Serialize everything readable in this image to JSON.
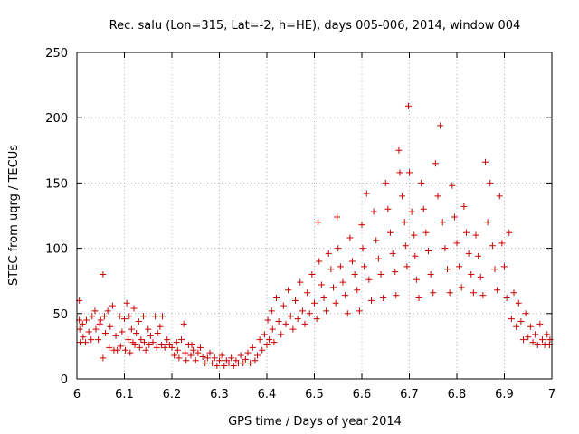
{
  "chart_data": {
    "type": "scatter",
    "title": "Rec. salu (Lon=315, Lat=-2, h=HE), days 005-006, 2014, window 004",
    "xlabel": "GPS time / Days of year 2014",
    "ylabel": "STEC from uqrg / TECUs",
    "xlim": [
      6,
      7
    ],
    "ylim": [
      0,
      250
    ],
    "x_ticks": [
      6,
      6.1,
      6.2,
      6.3,
      6.4,
      6.5,
      6.6,
      6.7,
      6.8,
      6.9,
      7
    ],
    "x_tick_labels": [
      "6",
      "6.1",
      "6.2",
      "6.3",
      "6.4",
      "6.5",
      "6.6",
      "6.7",
      "6.8",
      "6.9",
      "7"
    ],
    "y_ticks": [
      0,
      50,
      100,
      150,
      200,
      250
    ],
    "y_tick_labels": [
      "0",
      "50",
      "100",
      "150",
      "200",
      "250"
    ],
    "grid": true,
    "marker": "+",
    "color": "#cc0000",
    "series": [
      {
        "name": "STEC",
        "points": [
          [
            6.005,
            60
          ],
          [
            6.005,
            45
          ],
          [
            6.006,
            38
          ],
          [
            6.007,
            28
          ],
          [
            6.012,
            42
          ],
          [
            6.013,
            32
          ],
          [
            6.018,
            28
          ],
          [
            6.02,
            45
          ],
          [
            6.025,
            36
          ],
          [
            6.03,
            30
          ],
          [
            6.032,
            48
          ],
          [
            6.038,
            52
          ],
          [
            6.04,
            38
          ],
          [
            6.045,
            30
          ],
          [
            6.048,
            42
          ],
          [
            6.05,
            45
          ],
          [
            6.055,
            80
          ],
          [
            6.055,
            16
          ],
          [
            6.058,
            48
          ],
          [
            6.06,
            35
          ],
          [
            6.065,
            52
          ],
          [
            6.068,
            24
          ],
          [
            6.07,
            40
          ],
          [
            6.075,
            56
          ],
          [
            6.078,
            22
          ],
          [
            6.082,
            33
          ],
          [
            6.085,
            22
          ],
          [
            6.09,
            48
          ],
          [
            6.092,
            25
          ],
          [
            6.095,
            36
          ],
          [
            6.1,
            46
          ],
          [
            6.102,
            22
          ],
          [
            6.105,
            58
          ],
          [
            6.108,
            30
          ],
          [
            6.11,
            48
          ],
          [
            6.112,
            20
          ],
          [
            6.115,
            38
          ],
          [
            6.118,
            28
          ],
          [
            6.12,
            54
          ],
          [
            6.122,
            26
          ],
          [
            6.125,
            35
          ],
          [
            6.13,
            44
          ],
          [
            6.132,
            24
          ],
          [
            6.135,
            30
          ],
          [
            6.14,
            48
          ],
          [
            6.142,
            28
          ],
          [
            6.145,
            22
          ],
          [
            6.15,
            38
          ],
          [
            6.152,
            26
          ],
          [
            6.155,
            33
          ],
          [
            6.16,
            28
          ],
          [
            6.165,
            48
          ],
          [
            6.168,
            24
          ],
          [
            6.17,
            35
          ],
          [
            6.175,
            40
          ],
          [
            6.178,
            26
          ],
          [
            6.18,
            48
          ],
          [
            6.185,
            24
          ],
          [
            6.19,
            30
          ],
          [
            6.195,
            26
          ],
          [
            6.2,
            24
          ],
          [
            6.205,
            18
          ],
          [
            6.21,
            28
          ],
          [
            6.212,
            22
          ],
          [
            6.215,
            16
          ],
          [
            6.22,
            30
          ],
          [
            6.225,
            42
          ],
          [
            6.228,
            20
          ],
          [
            6.23,
            14
          ],
          [
            6.235,
            26
          ],
          [
            6.24,
            18
          ],
          [
            6.242,
            26
          ],
          [
            6.245,
            22
          ],
          [
            6.25,
            14
          ],
          [
            6.255,
            20
          ],
          [
            6.26,
            24
          ],
          [
            6.265,
            17
          ],
          [
            6.27,
            12
          ],
          [
            6.275,
            16
          ],
          [
            6.28,
            20
          ],
          [
            6.285,
            12
          ],
          [
            6.29,
            16
          ],
          [
            6.295,
            10
          ],
          [
            6.3,
            14
          ],
          [
            6.305,
            18
          ],
          [
            6.31,
            10
          ],
          [
            6.315,
            14
          ],
          [
            6.32,
            12
          ],
          [
            6.325,
            16
          ],
          [
            6.33,
            10
          ],
          [
            6.335,
            14
          ],
          [
            6.34,
            12
          ],
          [
            6.345,
            18
          ],
          [
            6.35,
            12
          ],
          [
            6.355,
            15
          ],
          [
            6.36,
            20
          ],
          [
            6.365,
            12
          ],
          [
            6.37,
            24
          ],
          [
            6.375,
            14
          ],
          [
            6.38,
            18
          ],
          [
            6.385,
            30
          ],
          [
            6.39,
            22
          ],
          [
            6.395,
            34
          ],
          [
            6.4,
            26
          ],
          [
            6.402,
            45
          ],
          [
            6.405,
            30
          ],
          [
            6.41,
            52
          ],
          [
            6.412,
            38
          ],
          [
            6.415,
            28
          ],
          [
            6.42,
            62
          ],
          [
            6.425,
            44
          ],
          [
            6.43,
            34
          ],
          [
            6.435,
            56
          ],
          [
            6.44,
            42
          ],
          [
            6.445,
            68
          ],
          [
            6.45,
            48
          ],
          [
            6.455,
            38
          ],
          [
            6.46,
            60
          ],
          [
            6.465,
            46
          ],
          [
            6.47,
            74
          ],
          [
            6.475,
            52
          ],
          [
            6.48,
            42
          ],
          [
            6.485,
            66
          ],
          [
            6.49,
            50
          ],
          [
            6.495,
            80
          ],
          [
            6.5,
            58
          ],
          [
            6.505,
            46
          ],
          [
            6.508,
            120
          ],
          [
            6.51,
            90
          ],
          [
            6.515,
            72
          ],
          [
            6.52,
            62
          ],
          [
            6.525,
            52
          ],
          [
            6.53,
            96
          ],
          [
            6.535,
            84
          ],
          [
            6.54,
            70
          ],
          [
            6.545,
            58
          ],
          [
            6.548,
            124
          ],
          [
            6.55,
            100
          ],
          [
            6.555,
            86
          ],
          [
            6.56,
            74
          ],
          [
            6.565,
            64
          ],
          [
            6.57,
            50
          ],
          [
            6.575,
            108
          ],
          [
            6.58,
            90
          ],
          [
            6.585,
            80
          ],
          [
            6.59,
            68
          ],
          [
            6.595,
            52
          ],
          [
            6.6,
            118
          ],
          [
            6.602,
            100
          ],
          [
            6.605,
            86
          ],
          [
            6.61,
            142
          ],
          [
            6.615,
            76
          ],
          [
            6.62,
            60
          ],
          [
            6.625,
            128
          ],
          [
            6.63,
            106
          ],
          [
            6.635,
            92
          ],
          [
            6.64,
            80
          ],
          [
            6.645,
            62
          ],
          [
            6.65,
            150
          ],
          [
            6.655,
            130
          ],
          [
            6.66,
            112
          ],
          [
            6.665,
            96
          ],
          [
            6.67,
            82
          ],
          [
            6.672,
            64
          ],
          [
            6.678,
            175
          ],
          [
            6.68,
            158
          ],
          [
            6.685,
            140
          ],
          [
            6.69,
            120
          ],
          [
            6.692,
            102
          ],
          [
            6.695,
            86
          ],
          [
            6.698,
            209
          ],
          [
            6.7,
            158
          ],
          [
            6.705,
            128
          ],
          [
            6.71,
            110
          ],
          [
            6.712,
            94
          ],
          [
            6.715,
            76
          ],
          [
            6.72,
            62
          ],
          [
            6.725,
            150
          ],
          [
            6.73,
            130
          ],
          [
            6.735,
            112
          ],
          [
            6.74,
            98
          ],
          [
            6.745,
            80
          ],
          [
            6.75,
            66
          ],
          [
            6.755,
            165
          ],
          [
            6.76,
            140
          ],
          [
            6.765,
            194
          ],
          [
            6.77,
            120
          ],
          [
            6.775,
            100
          ],
          [
            6.78,
            84
          ],
          [
            6.785,
            66
          ],
          [
            6.79,
            148
          ],
          [
            6.795,
            124
          ],
          [
            6.8,
            104
          ],
          [
            6.805,
            86
          ],
          [
            6.81,
            70
          ],
          [
            6.815,
            132
          ],
          [
            6.82,
            112
          ],
          [
            6.825,
            96
          ],
          [
            6.83,
            80
          ],
          [
            6.835,
            66
          ],
          [
            6.84,
            110
          ],
          [
            6.845,
            94
          ],
          [
            6.85,
            78
          ],
          [
            6.855,
            64
          ],
          [
            6.86,
            166
          ],
          [
            6.865,
            120
          ],
          [
            6.87,
            150
          ],
          [
            6.875,
            102
          ],
          [
            6.88,
            84
          ],
          [
            6.885,
            68
          ],
          [
            6.89,
            140
          ],
          [
            6.895,
            104
          ],
          [
            6.9,
            86
          ],
          [
            6.905,
            62
          ],
          [
            6.91,
            112
          ],
          [
            6.915,
            46
          ],
          [
            6.92,
            66
          ],
          [
            6.925,
            40
          ],
          [
            6.93,
            58
          ],
          [
            6.935,
            44
          ],
          [
            6.94,
            30
          ],
          [
            6.945,
            50
          ],
          [
            6.95,
            32
          ],
          [
            6.955,
            40
          ],
          [
            6.96,
            28
          ],
          [
            6.965,
            34
          ],
          [
            6.97,
            26
          ],
          [
            6.975,
            42
          ],
          [
            6.98,
            30
          ],
          [
            6.985,
            26
          ],
          [
            6.99,
            34
          ],
          [
            6.995,
            26
          ],
          [
            6.996,
            30
          ]
        ]
      }
    ]
  }
}
